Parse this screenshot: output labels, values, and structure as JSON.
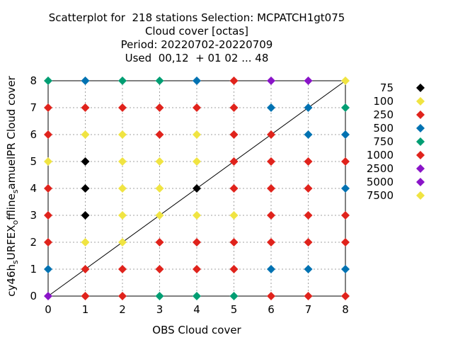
{
  "chart_data": {
    "type": "scatter",
    "title_lines": [
      "Scatterplot for  218 stations Selection: MCPATCH1gt075",
      "Cloud cover [octas]",
      "Period: 20220702-20220709",
      "Used  00,12  + 01 02 ... 48"
    ],
    "xlabel": "OBS Cloud cover",
    "ylabel": "cy46h_sURFEX_offline_samuelPR Cloud cover",
    "ylabel_parts": [
      {
        "t": "cy46h",
        "sub": false
      },
      {
        "t": "s",
        "sub": true
      },
      {
        "t": "URFEX",
        "sub": false
      },
      {
        "t": "o",
        "sub": true
      },
      {
        "t": "ffline",
        "sub": false
      },
      {
        "t": "s",
        "sub": true
      },
      {
        "t": "amuelPR Cloud cover",
        "sub": false
      }
    ],
    "xlim": [
      0,
      8
    ],
    "ylim": [
      0,
      8
    ],
    "xticks": [
      "0",
      "1",
      "2",
      "3",
      "4",
      "5",
      "6",
      "7",
      "8"
    ],
    "yticks": [
      "0",
      "1",
      "2",
      "3",
      "4",
      "5",
      "6",
      "7",
      "8"
    ],
    "grid": true,
    "diagonal": true,
    "legend_placement": "right",
    "legend": [
      {
        "label": "75",
        "color": "#000000"
      },
      {
        "label": "100",
        "color": "#f0e442"
      },
      {
        "label": "250",
        "color": "#e0231c"
      },
      {
        "label": "500",
        "color": "#0072b2"
      },
      {
        "label": "750",
        "color": "#009e73"
      },
      {
        "label": "1000",
        "color": "#e0231c"
      },
      {
        "label": "2500",
        "color": "#8a14c8"
      },
      {
        "label": "5000",
        "color": "#8a14c8"
      },
      {
        "label": "7500",
        "color": "#f0e442"
      }
    ],
    "colors": {
      "black": "#000000",
      "yellow": "#f0e442",
      "red": "#e0231c",
      "blue": "#0072b2",
      "green": "#009e73",
      "purple": "#8a14c8"
    },
    "points": [
      [
        0,
        8,
        "green"
      ],
      [
        1,
        8,
        "blue"
      ],
      [
        2,
        8,
        "green"
      ],
      [
        3,
        8,
        "green"
      ],
      [
        4,
        8,
        "blue"
      ],
      [
        5,
        8,
        "red"
      ],
      [
        6,
        8,
        "purple"
      ],
      [
        7,
        8,
        "purple"
      ],
      [
        8,
        8,
        "yellow"
      ],
      [
        0,
        7,
        "red"
      ],
      [
        1,
        7,
        "red"
      ],
      [
        2,
        7,
        "red"
      ],
      [
        3,
        7,
        "red"
      ],
      [
        4,
        7,
        "red"
      ],
      [
        5,
        7,
        "red"
      ],
      [
        6,
        7,
        "blue"
      ],
      [
        7,
        7,
        "blue"
      ],
      [
        8,
        7,
        "green"
      ],
      [
        0,
        6,
        "red"
      ],
      [
        1,
        6,
        "yellow"
      ],
      [
        2,
        6,
        "yellow"
      ],
      [
        3,
        6,
        "red"
      ],
      [
        4,
        6,
        "yellow"
      ],
      [
        5,
        6,
        "red"
      ],
      [
        6,
        6,
        "red"
      ],
      [
        7,
        6,
        "blue"
      ],
      [
        8,
        6,
        "blue"
      ],
      [
        0,
        5,
        "yellow"
      ],
      [
        1,
        5,
        "black"
      ],
      [
        2,
        5,
        "yellow"
      ],
      [
        3,
        5,
        "yellow"
      ],
      [
        4,
        5,
        "yellow"
      ],
      [
        5,
        5,
        "red"
      ],
      [
        6,
        5,
        "red"
      ],
      [
        7,
        5,
        "red"
      ],
      [
        8,
        5,
        "red"
      ],
      [
        0,
        4,
        "red"
      ],
      [
        1,
        4,
        "black"
      ],
      [
        2,
        4,
        "yellow"
      ],
      [
        3,
        4,
        "yellow"
      ],
      [
        4,
        4,
        "black"
      ],
      [
        5,
        4,
        "red"
      ],
      [
        6,
        4,
        "red"
      ],
      [
        7,
        4,
        "red"
      ],
      [
        8,
        4,
        "blue"
      ],
      [
        0,
        3,
        "red"
      ],
      [
        1,
        3,
        "black"
      ],
      [
        2,
        3,
        "yellow"
      ],
      [
        3,
        3,
        "yellow"
      ],
      [
        4,
        3,
        "yellow"
      ],
      [
        5,
        3,
        "yellow"
      ],
      [
        6,
        3,
        "red"
      ],
      [
        7,
        3,
        "red"
      ],
      [
        8,
        3,
        "red"
      ],
      [
        0,
        2,
        "red"
      ],
      [
        1,
        2,
        "yellow"
      ],
      [
        2,
        2,
        "yellow"
      ],
      [
        3,
        2,
        "red"
      ],
      [
        4,
        2,
        "red"
      ],
      [
        5,
        2,
        "red"
      ],
      [
        6,
        2,
        "red"
      ],
      [
        7,
        2,
        "red"
      ],
      [
        8,
        2,
        "red"
      ],
      [
        0,
        1,
        "blue"
      ],
      [
        1,
        1,
        "red"
      ],
      [
        2,
        1,
        "red"
      ],
      [
        3,
        1,
        "red"
      ],
      [
        4,
        1,
        "red"
      ],
      [
        5,
        1,
        "red"
      ],
      [
        6,
        1,
        "blue"
      ],
      [
        7,
        1,
        "blue"
      ],
      [
        8,
        1,
        "blue"
      ],
      [
        0,
        0,
        "purple"
      ],
      [
        1,
        0,
        "red"
      ],
      [
        2,
        0,
        "red"
      ],
      [
        3,
        0,
        "green"
      ],
      [
        4,
        0,
        "green"
      ],
      [
        5,
        0,
        "green"
      ],
      [
        6,
        0,
        "red"
      ],
      [
        7,
        0,
        "red"
      ],
      [
        8,
        0,
        "red"
      ]
    ]
  }
}
